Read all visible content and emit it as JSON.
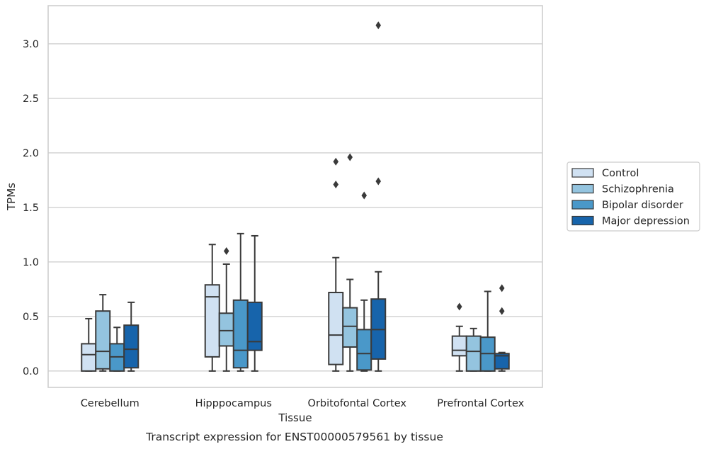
{
  "chart_data": {
    "type": "box",
    "title": "",
    "caption": "Transcript expression for ENST00000579561 by tissue",
    "xlabel": "Tissue",
    "ylabel": "TPMs",
    "ylim": [
      -0.15,
      3.35
    ],
    "yticks": [
      0.0,
      0.5,
      1.0,
      1.5,
      2.0,
      2.5,
      3.0
    ],
    "ytick_labels": [
      "0.0",
      "0.5",
      "1.0",
      "1.5",
      "2.0",
      "2.5",
      "3.0"
    ],
    "grid": "horizontal",
    "legend_position": "right",
    "categories": [
      "Cerebellum",
      "Hipppocampus",
      "Orbitofontal Cortex",
      "Prefrontal Cortex"
    ],
    "series": [
      {
        "name": "Control",
        "color": "#d0e1f2",
        "boxes": [
          {
            "min": 0.0,
            "q1": 0.0,
            "median": 0.15,
            "q3": 0.25,
            "max": 0.48,
            "outliers": []
          },
          {
            "min": 0.0,
            "q1": 0.13,
            "median": 0.68,
            "q3": 0.79,
            "max": 1.16,
            "outliers": []
          },
          {
            "min": 0.0,
            "q1": 0.06,
            "median": 0.33,
            "q3": 0.72,
            "max": 1.04,
            "outliers": [
              1.71,
              1.92
            ]
          },
          {
            "min": 0.0,
            "q1": 0.14,
            "median": 0.19,
            "q3": 0.32,
            "max": 0.41,
            "outliers": [
              0.59
            ]
          }
        ]
      },
      {
        "name": "Schizophrenia",
        "color": "#94c4df",
        "boxes": [
          {
            "min": 0.0,
            "q1": 0.02,
            "median": 0.18,
            "q3": 0.55,
            "max": 0.7,
            "outliers": []
          },
          {
            "min": 0.0,
            "q1": 0.23,
            "median": 0.37,
            "q3": 0.53,
            "max": 0.98,
            "outliers": [
              1.1
            ]
          },
          {
            "min": 0.0,
            "q1": 0.22,
            "median": 0.41,
            "q3": 0.58,
            "max": 0.84,
            "outliers": [
              1.96
            ]
          },
          {
            "min": 0.0,
            "q1": 0.0,
            "median": 0.18,
            "q3": 0.32,
            "max": 0.39,
            "outliers": []
          }
        ]
      },
      {
        "name": "Bipolar disorder",
        "color": "#4a98c9",
        "boxes": [
          {
            "min": 0.0,
            "q1": 0.0,
            "median": 0.13,
            "q3": 0.25,
            "max": 0.4,
            "outliers": []
          },
          {
            "min": 0.0,
            "q1": 0.03,
            "median": 0.19,
            "q3": 0.65,
            "max": 1.26,
            "outliers": []
          },
          {
            "min": 0.0,
            "q1": 0.01,
            "median": 0.16,
            "q3": 0.38,
            "max": 0.65,
            "outliers": [
              1.61
            ]
          },
          {
            "min": 0.0,
            "q1": 0.0,
            "median": 0.16,
            "q3": 0.31,
            "max": 0.73,
            "outliers": []
          }
        ]
      },
      {
        "name": "Major depression",
        "color": "#1764ab",
        "boxes": [
          {
            "min": 0.0,
            "q1": 0.03,
            "median": 0.2,
            "q3": 0.42,
            "max": 0.63,
            "outliers": []
          },
          {
            "min": 0.0,
            "q1": 0.19,
            "median": 0.27,
            "q3": 0.63,
            "max": 1.24,
            "outliers": []
          },
          {
            "min": 0.0,
            "q1": 0.11,
            "median": 0.38,
            "q3": 0.66,
            "max": 0.91,
            "outliers": [
              1.74,
              3.17
            ]
          },
          {
            "min": 0.0,
            "q1": 0.02,
            "median": 0.14,
            "q3": 0.16,
            "max": 0.17,
            "outliers": [
              0.55,
              0.76
            ]
          }
        ]
      }
    ]
  }
}
